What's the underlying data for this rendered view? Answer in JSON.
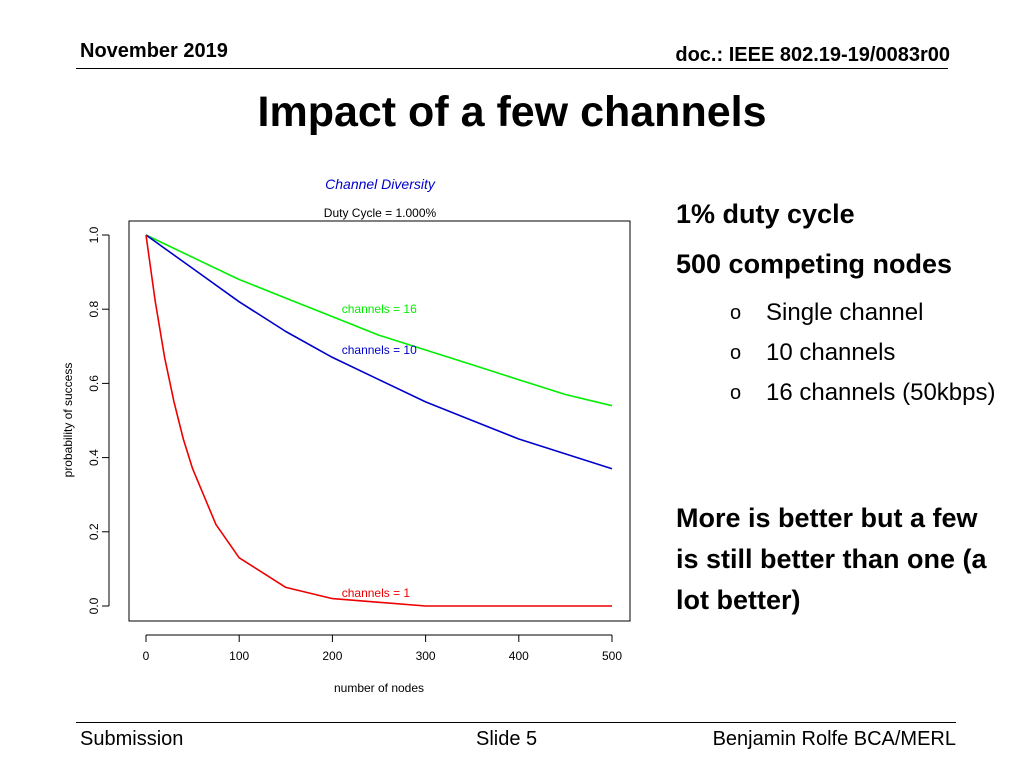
{
  "header": {
    "date": "November 2019",
    "doc": "doc.: IEEE 802.19-19/0083r00"
  },
  "title": "Impact of a few channels",
  "chart_data": {
    "type": "line",
    "title": "Channel Diversity",
    "subtitle": "Duty Cycle = 1.000%",
    "xlabel": "number of nodes",
    "ylabel": "probability of success",
    "xlim": [
      0,
      500
    ],
    "ylim": [
      0,
      1
    ],
    "xticks": [
      "0",
      "100",
      "200",
      "300",
      "400",
      "500"
    ],
    "yticks": [
      "0.0",
      "0.2",
      "0.4",
      "0.6",
      "0.8",
      "1.0"
    ],
    "grid": false,
    "series": [
      {
        "name": "channels = 16",
        "channels": 16,
        "color": "#00ee00",
        "x": [
          0,
          50,
          100,
          150,
          200,
          250,
          300,
          350,
          400,
          450,
          500
        ],
        "y": [
          1.0,
          0.94,
          0.88,
          0.83,
          0.78,
          0.73,
          0.69,
          0.65,
          0.61,
          0.57,
          0.54
        ]
      },
      {
        "name": "channels = 10",
        "channels": 10,
        "color": "#0000cc",
        "x": [
          0,
          50,
          100,
          150,
          200,
          250,
          300,
          350,
          400,
          450,
          500
        ],
        "y": [
          1.0,
          0.91,
          0.82,
          0.74,
          0.67,
          0.61,
          0.55,
          0.5,
          0.45,
          0.41,
          0.37
        ]
      },
      {
        "name": "channels =  1",
        "channels": 1,
        "color": "#ee0000",
        "x": [
          0,
          10,
          20,
          30,
          40,
          50,
          75,
          100,
          150,
          200,
          250,
          300,
          400,
          500
        ],
        "y": [
          1.0,
          0.82,
          0.67,
          0.55,
          0.45,
          0.37,
          0.22,
          0.13,
          0.05,
          0.02,
          0.01,
          0.0,
          0.0,
          0.0
        ]
      }
    ]
  },
  "bullets": {
    "main": [
      "1% duty cycle",
      "500 competing nodes"
    ],
    "marker": "o",
    "sub": [
      "Single channel",
      "10 channels",
      "16 channels (50kbps)"
    ]
  },
  "conclusion": "More is better but a few is still better than one (a lot better)",
  "footer": {
    "left": "Submission",
    "center": "Slide 5",
    "right": "Benjamin Rolfe BCA/MERL"
  }
}
